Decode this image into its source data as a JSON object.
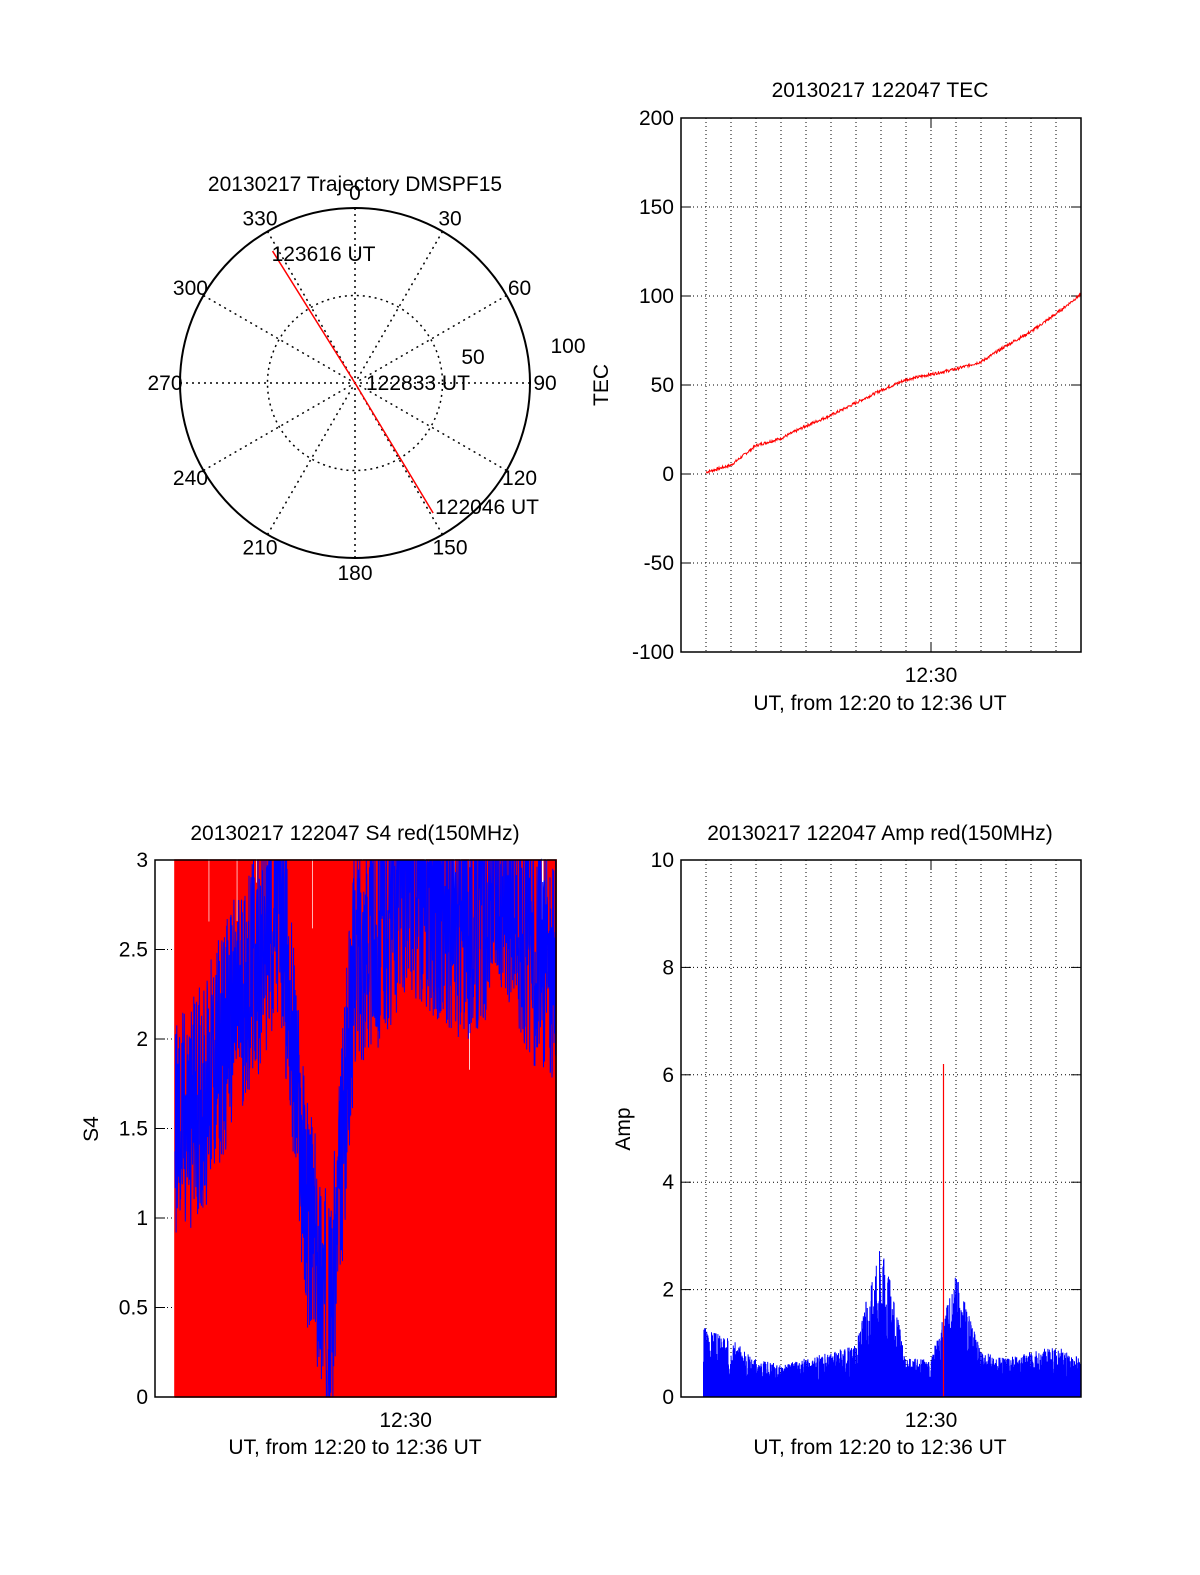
{
  "colors": {
    "red": "#ff0000",
    "blue": "#0000ff",
    "axis": "#000000",
    "grid": "#000000"
  },
  "chart_data": [
    {
      "id": "polar",
      "type": "scatter",
      "title": "20130217 Trajectory DMSPF15",
      "projection": "polar-azimuth-elevation",
      "angle_labels": [
        "0",
        "30",
        "60",
        "90",
        "120",
        "150",
        "180",
        "210",
        "240",
        "270",
        "300",
        "330"
      ],
      "radial_labels": [
        "50",
        "100"
      ],
      "track": {
        "color": "#ff0000",
        "points": [
          {
            "azimuth": 328,
            "elevation": 10,
            "label": "123616 UT"
          },
          {
            "azimuth": 0,
            "elevation": 90,
            "label": "122833 UT"
          },
          {
            "azimuth": 149,
            "elevation": 12,
            "label": "122046 UT"
          }
        ]
      }
    },
    {
      "id": "tec",
      "type": "line",
      "title": "20130217 122047 TEC",
      "xlabel": "UT, from 12:20 to 12:36 UT",
      "ylabel": "TEC",
      "xlim": [
        "12:20",
        "12:36"
      ],
      "ylim": [
        -100,
        200
      ],
      "yticks": [
        "-100",
        "-50",
        "0",
        "50",
        "100",
        "150",
        "200"
      ],
      "xticks": [
        "12:30"
      ],
      "series": [
        {
          "color": "#ff0000",
          "x": [
            "12:21",
            "12:22",
            "12:23",
            "12:24",
            "12:25",
            "12:26",
            "12:27",
            "12:28",
            "12:29",
            "12:30",
            "12:31",
            "12:32",
            "12:33",
            "12:34",
            "12:35",
            "12:36"
          ],
          "values": [
            1,
            5,
            16,
            20,
            27,
            33,
            40,
            47,
            53,
            56,
            59,
            63,
            72,
            80,
            90,
            101
          ]
        }
      ]
    },
    {
      "id": "s4",
      "type": "line",
      "title": "20130217 122047 S4 red(150MHz)",
      "xlabel": "UT, from 12:20 to 12:36 UT",
      "ylabel": "S4",
      "xlim": [
        "12:20",
        "12:36"
      ],
      "ylim": [
        0,
        3
      ],
      "yticks": [
        "0",
        "0.5",
        "1",
        "1.5",
        "2",
        "2.5",
        "3"
      ],
      "xticks": [
        "12:30"
      ],
      "series": [
        {
          "color": "#0000ff",
          "x": [
            "12:21",
            "12:22",
            "12:23",
            "12:24",
            "12:25",
            "12:26",
            "12:27",
            "12:28",
            "12:29",
            "12:30",
            "12:31",
            "12:32",
            "12:33",
            "12:34",
            "12:35",
            "12:36"
          ],
          "values": [
            1.5,
            1.7,
            2.1,
            2.4,
            2.8,
            1.1,
            0.4,
            2.5,
            2.6,
            2.9,
            2.8,
            2.6,
            2.7,
            2.9,
            2.5,
            2.4
          ]
        },
        {
          "color": "#ff0000",
          "x": [
            "12:21",
            "12:22",
            "12:23",
            "12:24",
            "12:25",
            "12:26",
            "12:27",
            "12:28",
            "12:29",
            "12:30",
            "12:31",
            "12:32",
            "12:33",
            "12:34",
            "12:35",
            "12:36"
          ],
          "values": [
            3,
            0,
            3,
            0,
            3,
            0,
            3,
            0,
            3,
            0,
            3,
            0,
            3,
            0,
            3,
            0
          ]
        }
      ]
    },
    {
      "id": "amp",
      "type": "line",
      "title": "20130217 122047 Amp red(150MHz)",
      "xlabel": "UT, from 12:20 to 12:36 UT",
      "ylabel": "Amp",
      "xlim": [
        "12:20",
        "12:36"
      ],
      "ylim": [
        0,
        10
      ],
      "yticks": [
        "0",
        "2",
        "4",
        "6",
        "8",
        "10"
      ],
      "xticks": [
        "12:30"
      ],
      "series": [
        {
          "color": "#0000ff",
          "x": [
            "12:21",
            "12:22",
            "12:23",
            "12:24",
            "12:25",
            "12:26",
            "12:27",
            "12:28",
            "12:29",
            "12:30",
            "12:31",
            "12:32",
            "12:33",
            "12:34",
            "12:35",
            "12:36"
          ],
          "values": [
            1.1,
            0.9,
            0.6,
            0.5,
            0.6,
            0.7,
            0.8,
            2.5,
            0.6,
            0.6,
            1.9,
            0.7,
            0.6,
            0.7,
            0.8,
            0.6
          ]
        },
        {
          "color": "#ff0000",
          "x": [
            "12:30.5"
          ],
          "values": [
            6.2
          ]
        }
      ]
    }
  ]
}
